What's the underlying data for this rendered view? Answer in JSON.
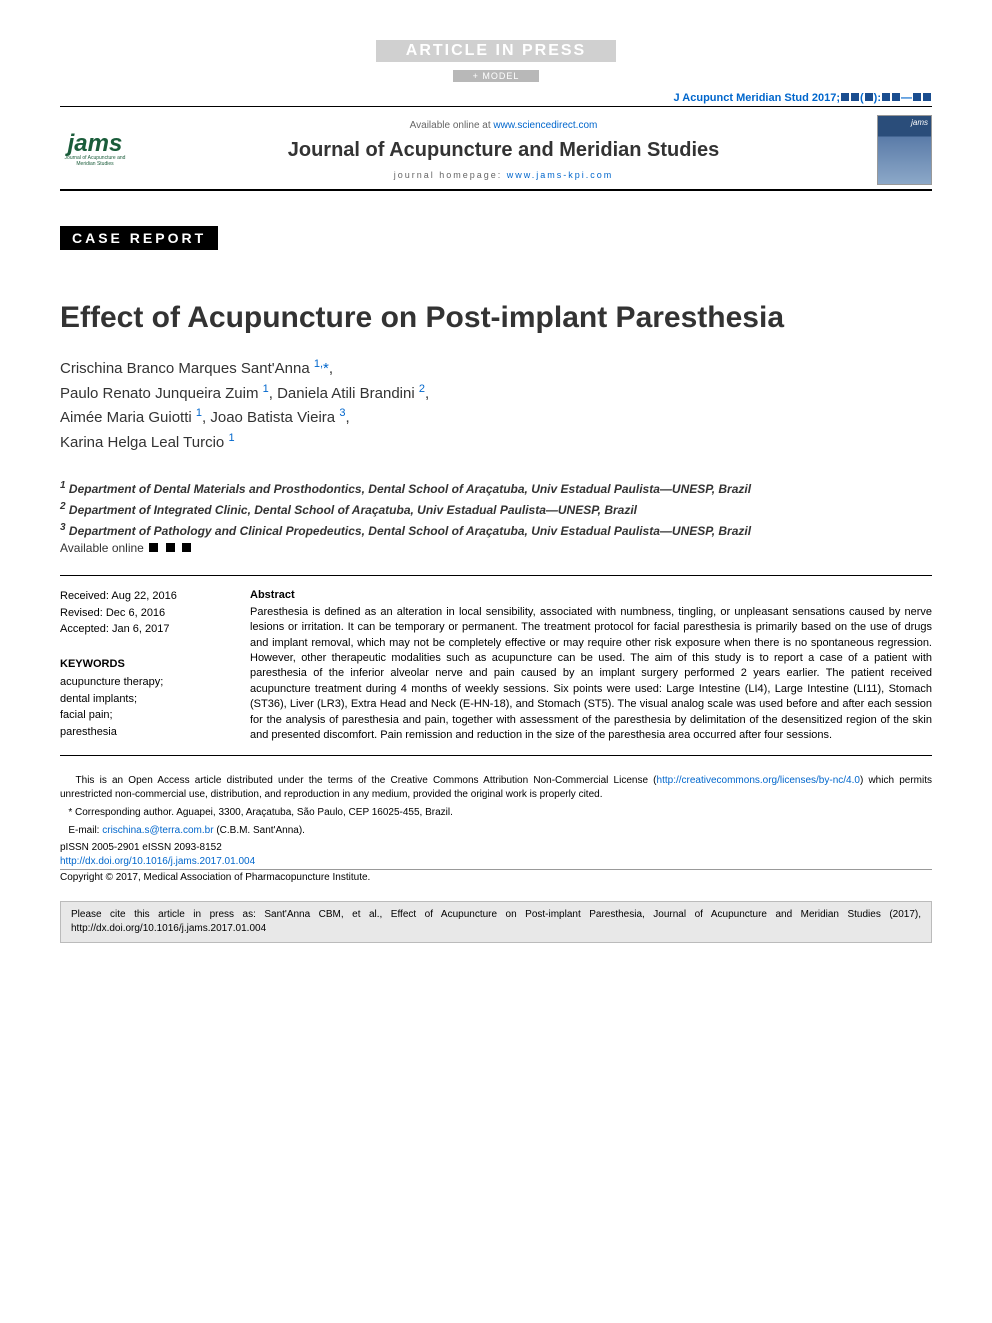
{
  "header": {
    "article_in_press": "ARTICLE IN PRESS",
    "model_badge": "+ MODEL",
    "citation_prefix": "J Acupunct Meridian Stud 2017;",
    "available_online_label": "Available online at ",
    "available_online_url": "www.sciencedirect.com",
    "journal_name": "Journal of Acupuncture and Meridian Studies",
    "homepage_label": "journal homepage: ",
    "homepage_url": "www.jams-kpi.com",
    "logo_text": "jams",
    "logo_subtitle": "Journal of Acupuncture and Meridian Studies"
  },
  "article": {
    "case_report_label": "CASE REPORT",
    "title": "Effect of Acupuncture on Post-implant Paresthesia",
    "authors_html": "Crischina Branco Marques Sant'Anna <sup>1,</sup><span class='asterisk'>*</span>,<br>Paulo Renato Junqueira Zuim <sup>1</sup>, Daniela Atili Brandini <sup>2</sup>,<br>Aimée Maria Guiotti <sup>1</sup>, Joao Batista Vieira <sup>3</sup>,<br>Karina Helga Leal Turcio <sup>1</sup>",
    "affiliations": [
      "Department of Dental Materials and Prosthodontics, Dental School of Araçatuba, Univ Estadual Paulista—UNESP, Brazil",
      "Department of Integrated Clinic, Dental School of Araçatuba, Univ Estadual Paulista—UNESP, Brazil",
      "Department of Pathology and Clinical Propedeutics, Dental School of Araçatuba, Univ Estadual Paulista—UNESP, Brazil"
    ],
    "available_online_label": "Available online"
  },
  "abstract": {
    "received": "Received: Aug 22, 2016",
    "revised": "Revised: Dec 6, 2016",
    "accepted": "Accepted: Jan 6, 2017",
    "keywords_head": "KEYWORDS",
    "keywords": "acupuncture therapy;\ndental implants;\nfacial pain;\nparesthesia",
    "head": "Abstract",
    "body": "Paresthesia is defined as an alteration in local sensibility, associated with numbness, tingling, or unpleasant sensations caused by nerve lesions or irritation. It can be temporary or permanent. The treatment protocol for facial paresthesia is primarily based on the use of drugs and implant removal, which may not be completely effective or may require other risk exposure when there is no spontaneous regression. However, other therapeutic modalities such as acupuncture can be used. The aim of this study is to report a case of a patient with paresthesia of the inferior alveolar nerve and pain caused by an implant surgery performed 2 years earlier. The patient received acupuncture treatment during 4 months of weekly sessions. Six points were used: Large Intestine (LI4), Large Intestine (LI11), Stomach (ST36), Liver (LR3), Extra Head and Neck (E-HN-18), and Stomach (ST5). The visual analog scale was used before and after each session for the analysis of paresthesia and pain, together with assessment of the paresthesia by delimitation of the desensitized region of the skin and presented discomfort. Pain remission and reduction in the size of the paresthesia area occurred after four sessions."
  },
  "footer": {
    "open_access_prefix": "This is an Open Access article distributed under the terms of the Creative Commons Attribution Non-Commercial License (",
    "cc_url": "http://creativecommons.org/licenses/by-nc/4.0",
    "open_access_suffix": ") which permits unrestricted non-commercial use, distribution, and reproduction in any medium, provided the original work is properly cited.",
    "corresponding": "* Corresponding author. Aguapei, 3300, Araçatuba, São Paulo, CEP 16025-455, Brazil.",
    "email_label": "E-mail: ",
    "email": "crischina.s@terra.com.br",
    "email_suffix": " (C.B.M. Sant'Anna).",
    "pissn": "pISSN 2005-2901   eISSN 2093-8152",
    "doi_url": "http://dx.doi.org/10.1016/j.jams.2017.01.004",
    "copyright": "Copyright © 2017, Medical Association of Pharmacopuncture Institute.",
    "cite_box": "Please cite this article in press as: Sant'Anna CBM, et al., Effect of Acupuncture on Post-implant Paresthesia, Journal of Acupuncture and Meridian Studies (2017), http://dx.doi.org/10.1016/j.jams.2017.01.004"
  },
  "colors": {
    "link": "#0066cc",
    "logo_green": "#1a5c3a",
    "badge_bg": "#000000",
    "cite_box_bg": "#e8e8e8",
    "aip_bg": "#d0d0d0",
    "square_blue": "#1a4d8f"
  }
}
